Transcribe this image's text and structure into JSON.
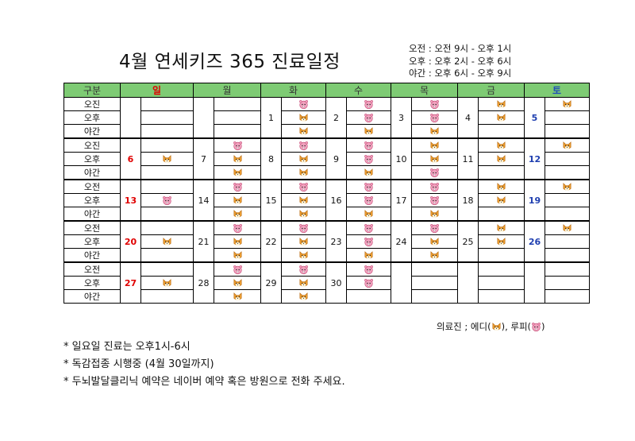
{
  "title": "4월  연세키즈  365  진료일정",
  "hours": [
    "오전 : 오전 9시 - 오후 1시",
    "오후 : 오후 2시 - 오후 6시",
    "야간 : 오후 6시 - 오후 9시"
  ],
  "header": [
    "구분",
    "일",
    "월",
    "화",
    "수",
    "목",
    "금",
    "토"
  ],
  "slot_labels": [
    "오전",
    "오후",
    "야간"
  ],
  "slot_labels_alt": [
    "오진",
    "오후",
    "야간"
  ],
  "weeks": [
    {
      "first_label": "오진",
      "days": [
        {
          "num": "",
          "c": [
            "",
            "",
            ""
          ]
        },
        {
          "num": "",
          "c": [
            "",
            "",
            ""
          ]
        },
        {
          "num": "1",
          "c": [
            "R",
            "E",
            "E"
          ]
        },
        {
          "num": "2",
          "c": [
            "R",
            "R",
            "E"
          ]
        },
        {
          "num": "3",
          "c": [
            "R",
            "R",
            "E"
          ]
        },
        {
          "num": "4",
          "c": [
            "E",
            "E",
            ""
          ]
        },
        {
          "num": "5",
          "c": [
            "E",
            "",
            ""
          ]
        }
      ]
    },
    {
      "first_label": "오진",
      "days": [
        {
          "num": "6",
          "c": [
            "",
            "E",
            ""
          ]
        },
        {
          "num": "7",
          "c": [
            "R",
            "E",
            "E"
          ]
        },
        {
          "num": "8",
          "c": [
            "R",
            "E",
            "E"
          ]
        },
        {
          "num": "9",
          "c": [
            "R",
            "R",
            "E"
          ]
        },
        {
          "num": "10",
          "c": [
            "E",
            "E",
            "R"
          ]
        },
        {
          "num": "11",
          "c": [
            "E",
            "E",
            ""
          ]
        },
        {
          "num": "12",
          "c": [
            "E",
            "",
            ""
          ]
        }
      ]
    },
    {
      "first_label": "오전",
      "days": [
        {
          "num": "13",
          "c": [
            "",
            "R",
            ""
          ]
        },
        {
          "num": "14",
          "c": [
            "R",
            "E",
            "E"
          ]
        },
        {
          "num": "15",
          "c": [
            "R",
            "E",
            "E"
          ]
        },
        {
          "num": "16",
          "c": [
            "R",
            "R",
            "E"
          ]
        },
        {
          "num": "17",
          "c": [
            "R",
            "R",
            "E"
          ]
        },
        {
          "num": "18",
          "c": [
            "E",
            "E",
            ""
          ]
        },
        {
          "num": "19",
          "c": [
            "E",
            "",
            ""
          ]
        }
      ]
    },
    {
      "first_label": "오전",
      "days": [
        {
          "num": "20",
          "c": [
            "",
            "E",
            ""
          ]
        },
        {
          "num": "21",
          "c": [
            "R",
            "E",
            "E"
          ]
        },
        {
          "num": "22",
          "c": [
            "R",
            "E",
            "E"
          ]
        },
        {
          "num": "23",
          "c": [
            "R",
            "R",
            "E"
          ]
        },
        {
          "num": "24",
          "c": [
            "R",
            "E",
            "E"
          ]
        },
        {
          "num": "25",
          "c": [
            "E",
            "E",
            ""
          ]
        },
        {
          "num": "26",
          "c": [
            "E",
            "",
            ""
          ]
        }
      ]
    },
    {
      "first_label": "오전",
      "days": [
        {
          "num": "27",
          "c": [
            "",
            "E",
            ""
          ]
        },
        {
          "num": "28",
          "c": [
            "R",
            "E",
            "E"
          ]
        },
        {
          "num": "29",
          "c": [
            "R",
            "E",
            "E"
          ]
        },
        {
          "num": "30",
          "c": [
            "R",
            "R",
            ""
          ]
        },
        {
          "num": "",
          "c": [
            "",
            "",
            ""
          ]
        },
        {
          "num": "",
          "c": [
            "",
            "",
            ""
          ]
        },
        {
          "num": "",
          "c": [
            "",
            "",
            ""
          ]
        }
      ]
    }
  ],
  "doctor_note": {
    "prefix": "의료진 ; 에디(",
    "mid": "), 루피(",
    "suffix": ")"
  },
  "icons": {
    "E": "eddy-fox-icon",
    "R": "loopy-beaver-icon"
  },
  "colors": {
    "header_bg": "#7ecb74",
    "sunday": "#e00000",
    "saturday": "#1f3fb0"
  },
  "notes": [
    "* 일요일 진료는 오후1시-6시",
    "* 독감접종 시행중 (4월 30일까지)",
    "* 두뇌발달클리닉 예약은 네이버 예약 혹은 방원으로 전화 주세요."
  ]
}
